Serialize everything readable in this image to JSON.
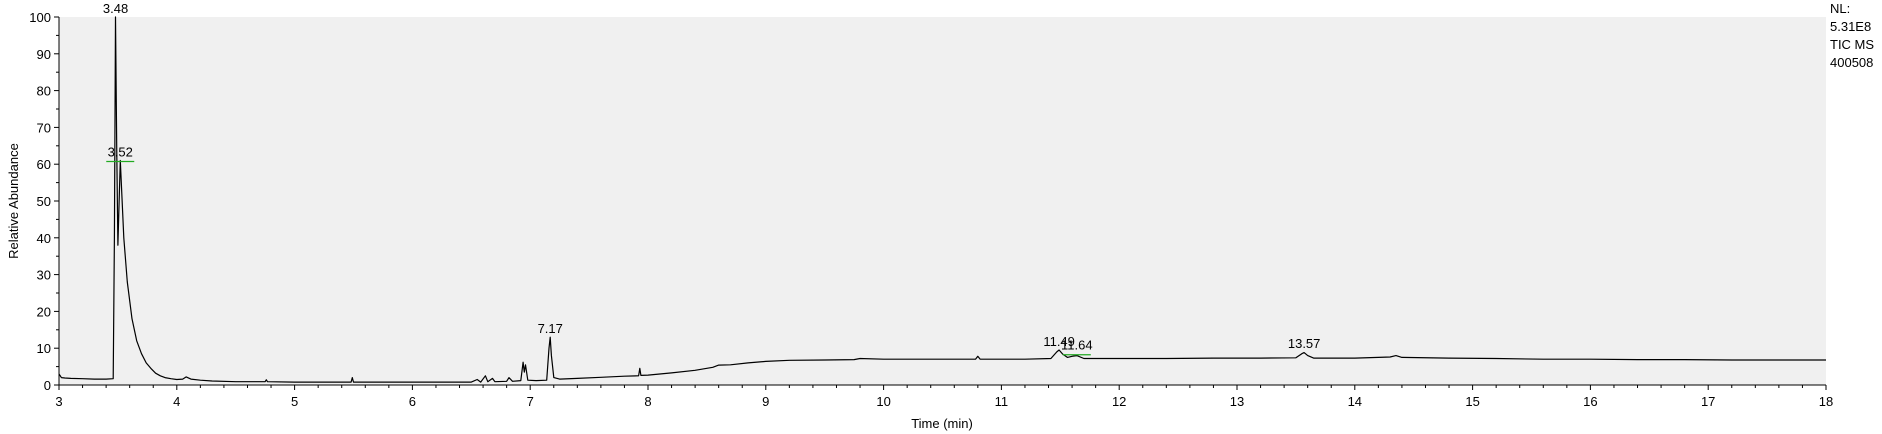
{
  "chart_data": {
    "type": "line",
    "title": "",
    "xlabel": "Time (min)",
    "ylabel": "Relative Abundance",
    "xlim": [
      3,
      18
    ],
    "ylim": [
      0,
      100
    ],
    "x_ticks": [
      "3",
      "4",
      "5",
      "6",
      "7",
      "8",
      "9",
      "10",
      "11",
      "12",
      "13",
      "14",
      "15",
      "16",
      "17",
      "18"
    ],
    "y_ticks": [
      "0",
      "10",
      "20",
      "30",
      "40",
      "50",
      "60",
      "70",
      "80",
      "90",
      "100"
    ],
    "colors": {
      "plot_background": "#f0f0f0",
      "trace": "#000000",
      "peak_marker": "#22aa22"
    },
    "grid": false,
    "info_box": [
      "NL:",
      "5.31E8",
      "TIC  MS",
      "400508"
    ],
    "peak_labels": [
      {
        "text": "3.48",
        "x": 3.48,
        "y": 100
      },
      {
        "text": "3.52",
        "x": 3.52,
        "y": 61
      },
      {
        "text": "7.17",
        "x": 7.17,
        "y": 13
      },
      {
        "text": "11.49",
        "x": 11.49,
        "y": 9.5
      },
      {
        "text": "11.64",
        "x": 11.64,
        "y": 8.5
      },
      {
        "text": "13.57",
        "x": 13.57,
        "y": 9
      }
    ],
    "series": [
      {
        "values": [
          [
            3.0,
            3.0
          ],
          [
            3.02,
            2.0
          ],
          [
            3.05,
            1.9
          ],
          [
            3.1,
            1.8
          ],
          [
            3.2,
            1.7
          ],
          [
            3.3,
            1.6
          ],
          [
            3.4,
            1.6
          ],
          [
            3.46,
            1.7
          ],
          [
            3.47,
            40
          ],
          [
            3.48,
            100
          ],
          [
            3.49,
            65
          ],
          [
            3.5,
            38
          ],
          [
            3.52,
            61
          ],
          [
            3.55,
            40
          ],
          [
            3.58,
            28
          ],
          [
            3.62,
            18
          ],
          [
            3.66,
            12
          ],
          [
            3.7,
            8.5
          ],
          [
            3.74,
            6
          ],
          [
            3.78,
            4.5
          ],
          [
            3.82,
            3.2
          ],
          [
            3.86,
            2.5
          ],
          [
            3.9,
            2.0
          ],
          [
            3.95,
            1.7
          ],
          [
            4.0,
            1.5
          ],
          [
            4.05,
            1.6
          ],
          [
            4.08,
            2.2
          ],
          [
            4.12,
            1.6
          ],
          [
            4.2,
            1.3
          ],
          [
            4.3,
            1.1
          ],
          [
            4.5,
            0.9
          ],
          [
            4.75,
            0.9
          ],
          [
            4.76,
            1.4
          ],
          [
            4.77,
            0.9
          ],
          [
            5.0,
            0.8
          ],
          [
            5.3,
            0.8
          ],
          [
            5.48,
            0.8
          ],
          [
            5.49,
            2.0
          ],
          [
            5.5,
            0.8
          ],
          [
            5.7,
            0.8
          ],
          [
            6.0,
            0.8
          ],
          [
            6.3,
            0.8
          ],
          [
            6.5,
            0.8
          ],
          [
            6.55,
            1.5
          ],
          [
            6.58,
            0.8
          ],
          [
            6.62,
            2.5
          ],
          [
            6.64,
            0.9
          ],
          [
            6.68,
            1.8
          ],
          [
            6.7,
            0.9
          ],
          [
            6.8,
            1.0
          ],
          [
            6.82,
            2.0
          ],
          [
            6.85,
            1.0
          ],
          [
            6.92,
            1.2
          ],
          [
            6.94,
            6.2
          ],
          [
            6.95,
            3.5
          ],
          [
            6.96,
            5.5
          ],
          [
            6.98,
            1.3
          ],
          [
            7.05,
            1.2
          ],
          [
            7.14,
            1.3
          ],
          [
            7.16,
            10
          ],
          [
            7.17,
            13
          ],
          [
            7.18,
            8
          ],
          [
            7.2,
            2.0
          ],
          [
            7.25,
            1.6
          ],
          [
            7.4,
            1.8
          ],
          [
            7.6,
            2.1
          ],
          [
            7.8,
            2.4
          ],
          [
            7.92,
            2.5
          ],
          [
            7.93,
            4.5
          ],
          [
            7.94,
            2.6
          ],
          [
            8.0,
            2.7
          ],
          [
            8.2,
            3.3
          ],
          [
            8.4,
            4.0
          ],
          [
            8.55,
            4.8
          ],
          [
            8.6,
            5.4
          ],
          [
            8.7,
            5.5
          ],
          [
            8.85,
            6.0
          ],
          [
            9.0,
            6.4
          ],
          [
            9.2,
            6.7
          ],
          [
            9.5,
            6.8
          ],
          [
            9.75,
            6.9
          ],
          [
            9.8,
            7.2
          ],
          [
            10.0,
            7.0
          ],
          [
            10.3,
            7.0
          ],
          [
            10.5,
            7.0
          ],
          [
            10.78,
            7.0
          ],
          [
            10.8,
            7.8
          ],
          [
            10.82,
            7.0
          ],
          [
            11.0,
            7.0
          ],
          [
            11.2,
            7.0
          ],
          [
            11.42,
            7.2
          ],
          [
            11.47,
            9.0
          ],
          [
            11.49,
            9.5
          ],
          [
            11.52,
            8.4
          ],
          [
            11.56,
            7.5
          ],
          [
            11.6,
            7.8
          ],
          [
            11.64,
            8.0
          ],
          [
            11.7,
            7.2
          ],
          [
            12.0,
            7.2
          ],
          [
            12.4,
            7.2
          ],
          [
            12.8,
            7.3
          ],
          [
            13.2,
            7.3
          ],
          [
            13.5,
            7.4
          ],
          [
            13.55,
            8.5
          ],
          [
            13.57,
            8.8
          ],
          [
            13.6,
            8.0
          ],
          [
            13.65,
            7.3
          ],
          [
            14.0,
            7.3
          ],
          [
            14.3,
            7.6
          ],
          [
            14.35,
            8.0
          ],
          [
            14.4,
            7.5
          ],
          [
            14.8,
            7.3
          ],
          [
            15.2,
            7.2
          ],
          [
            15.6,
            7.0
          ],
          [
            16.0,
            7.0
          ],
          [
            16.4,
            6.9
          ],
          [
            16.8,
            6.9
          ],
          [
            17.2,
            6.8
          ],
          [
            17.6,
            6.8
          ],
          [
            18.0,
            6.8
          ]
        ]
      }
    ]
  }
}
